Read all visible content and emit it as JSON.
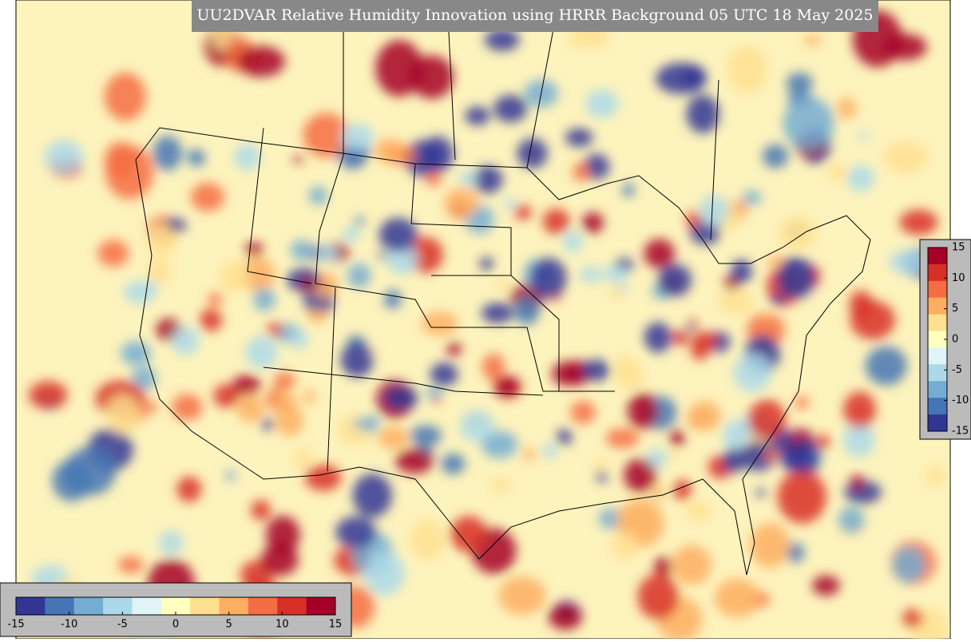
{
  "title": "UU2DVAR Relative Humidity Innovation using HRRR Background 05 UTC 18 May 2025",
  "colorbar_bottom": {
    "lim": [
      -15,
      15
    ],
    "ticks": [
      -15,
      -10,
      -5,
      0,
      5,
      10,
      15
    ]
  },
  "colorbar_right": {
    "lim": [
      -15,
      15
    ],
    "ticks": [
      -15,
      -10,
      -5,
      0,
      5,
      10,
      15
    ]
  },
  "colors": [
    "#313695",
    "#4575b4",
    "#74add1",
    "#abd9e9",
    "#e0f3f8",
    "#ffffbf",
    "#fee090",
    "#fdae61",
    "#f46d43",
    "#d73027",
    "#a50026"
  ]
}
